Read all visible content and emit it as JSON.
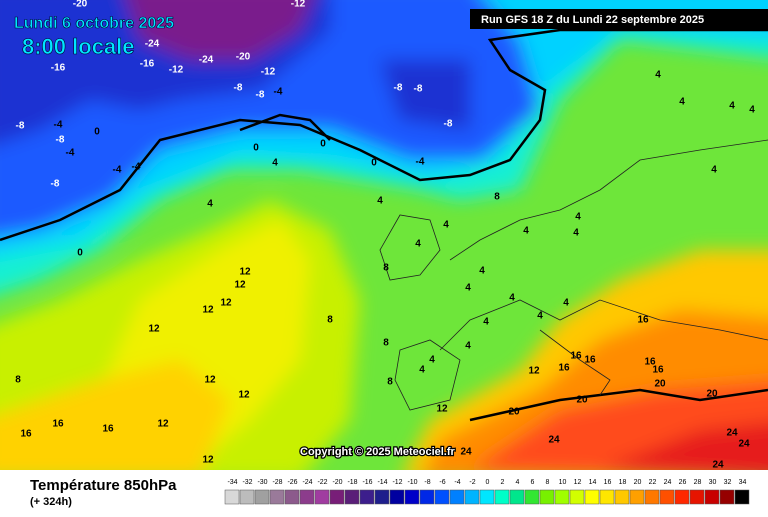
{
  "header": {
    "date": "Lundi 6 octobre 2025",
    "time": "8:00 locale",
    "run": "Run GFS 18 Z du Lundi 22 septembre 2025"
  },
  "map": {
    "copyright": "Copyright © 2025 Meteociel.fr",
    "contour_labels": [
      -20,
      -12,
      -24,
      -16,
      -16,
      -12,
      -24,
      -20,
      -12,
      -8,
      -8,
      -4,
      -8,
      -4,
      -8,
      -4,
      0,
      -4,
      -4,
      -8,
      -8,
      -8,
      -8,
      0,
      0,
      0,
      -4,
      4,
      4,
      0,
      4,
      4,
      4,
      8,
      4,
      8,
      4,
      4,
      4,
      4,
      4,
      4,
      4,
      4,
      4,
      4,
      4,
      4,
      4,
      4,
      4,
      4,
      8,
      8,
      8,
      12,
      12,
      12,
      12,
      12,
      12,
      12,
      12,
      12,
      12,
      12,
      8,
      16,
      16,
      16,
      16,
      16,
      16,
      16,
      16,
      16,
      20,
      20,
      20,
      20,
      24,
      24,
      24,
      24,
      24
    ]
  },
  "footer": {
    "title": "Température 850hPa",
    "lead": "(+ 324h)"
  },
  "legend": {
    "values": [
      -34,
      -32,
      -30,
      -28,
      -26,
      -24,
      -22,
      -20,
      -18,
      -16,
      -14,
      -12,
      -10,
      -8,
      -6,
      -4,
      -2,
      0,
      2,
      4,
      6,
      8,
      10,
      12,
      14,
      16,
      18,
      20,
      22,
      24,
      26,
      28,
      30,
      32,
      34
    ],
    "colors": [
      "#d8d8d8",
      "#bcbcbc",
      "#a0a0a0",
      "#9a7a9a",
      "#8c5a8c",
      "#8c3c8c",
      "#a03ca0",
      "#781e78",
      "#5a1e78",
      "#3c1e8c",
      "#1e1e8c",
      "#0000a0",
      "#0000c8",
      "#0028e6",
      "#0050ff",
      "#0080ff",
      "#00b4ff",
      "#00e6ff",
      "#00ffc8",
      "#00e68c",
      "#32e632",
      "#78f000",
      "#a0ff00",
      "#d2ff00",
      "#ffff00",
      "#ffe600",
      "#ffc800",
      "#ffa000",
      "#ff7800",
      "#ff5000",
      "#ff2800",
      "#e61400",
      "#c80000",
      "#960000",
      "#000000"
    ]
  }
}
